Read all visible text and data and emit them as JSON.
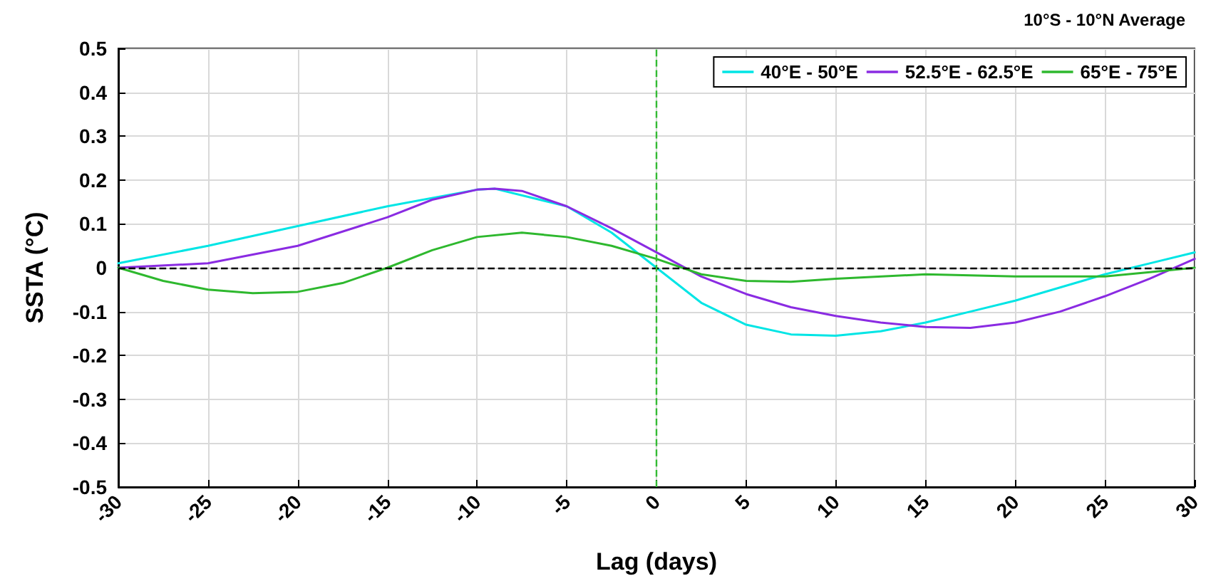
{
  "chart_data": {
    "type": "line",
    "title": "10°S - 10°N Average",
    "xlabel": "Lag (days)",
    "ylabel": "SSTA (°C)",
    "xlim": [
      -30,
      30
    ],
    "xticks": [
      -30,
      -25,
      -20,
      -15,
      -10,
      -5,
      0,
      5,
      10,
      15,
      20,
      25,
      30
    ],
    "ylim": [
      -0.5,
      0.5
    ],
    "yticks": [
      -0.5,
      -0.4,
      -0.3,
      -0.2,
      -0.1,
      0,
      0.1,
      0.2,
      0.3,
      0.4,
      0.5
    ],
    "grid": true,
    "legend": "top right",
    "marker": "none",
    "line_style": "solid",
    "ref_lines": [
      {
        "axis": "y",
        "value": 0,
        "color": "#000000",
        "line_style": "dashed"
      },
      {
        "axis": "x",
        "value": 0,
        "color": "#33bb33",
        "line_style": "dashed"
      }
    ],
    "series": [
      {
        "name": "40°E - 50°E",
        "color": "#00e5e5",
        "x": [
          -30,
          -25,
          -20,
          -15,
          -10,
          -9,
          -5,
          -2.5,
          0,
          2.5,
          5,
          7.5,
          10,
          12.5,
          15,
          17.5,
          20,
          22.5,
          25,
          27.5,
          30
        ],
        "values": [
          0.01,
          0.05,
          0.095,
          0.14,
          0.178,
          0.18,
          0.14,
          0.08,
          0.0,
          -0.08,
          -0.13,
          -0.152,
          -0.155,
          -0.145,
          -0.125,
          -0.1,
          -0.075,
          -0.045,
          -0.015,
          0.01,
          0.035
        ]
      },
      {
        "name": "52.5°E - 62.5°E",
        "color": "#8a2be2",
        "x": [
          -30,
          -25,
          -20,
          -15,
          -12.5,
          -10,
          -9,
          -7.5,
          -5,
          -2.5,
          0,
          2.5,
          5,
          7.5,
          10,
          12.5,
          15,
          17.5,
          20,
          22.5,
          25,
          27.5,
          30
        ],
        "values": [
          0.0,
          0.01,
          0.05,
          0.115,
          0.155,
          0.178,
          0.18,
          0.175,
          0.14,
          0.09,
          0.035,
          -0.02,
          -0.06,
          -0.09,
          -0.11,
          -0.125,
          -0.135,
          -0.137,
          -0.125,
          -0.1,
          -0.065,
          -0.025,
          0.02
        ]
      },
      {
        "name": "65°E - 75°E",
        "color": "#2eb82e",
        "x": [
          -30,
          -27.5,
          -25,
          -22.5,
          -20,
          -17.5,
          -15,
          -12.5,
          -10,
          -7.5,
          -5,
          -2.5,
          0,
          2.5,
          5,
          7.5,
          10,
          15,
          20,
          25,
          27.5,
          30
        ],
        "values": [
          0,
          -0.03,
          -0.05,
          -0.058,
          -0.055,
          -0.035,
          0.0,
          0.04,
          0.07,
          0.08,
          0.07,
          0.05,
          0.02,
          -0.015,
          -0.03,
          -0.032,
          -0.025,
          -0.015,
          -0.02,
          -0.02,
          -0.01,
          0
        ]
      }
    ]
  }
}
